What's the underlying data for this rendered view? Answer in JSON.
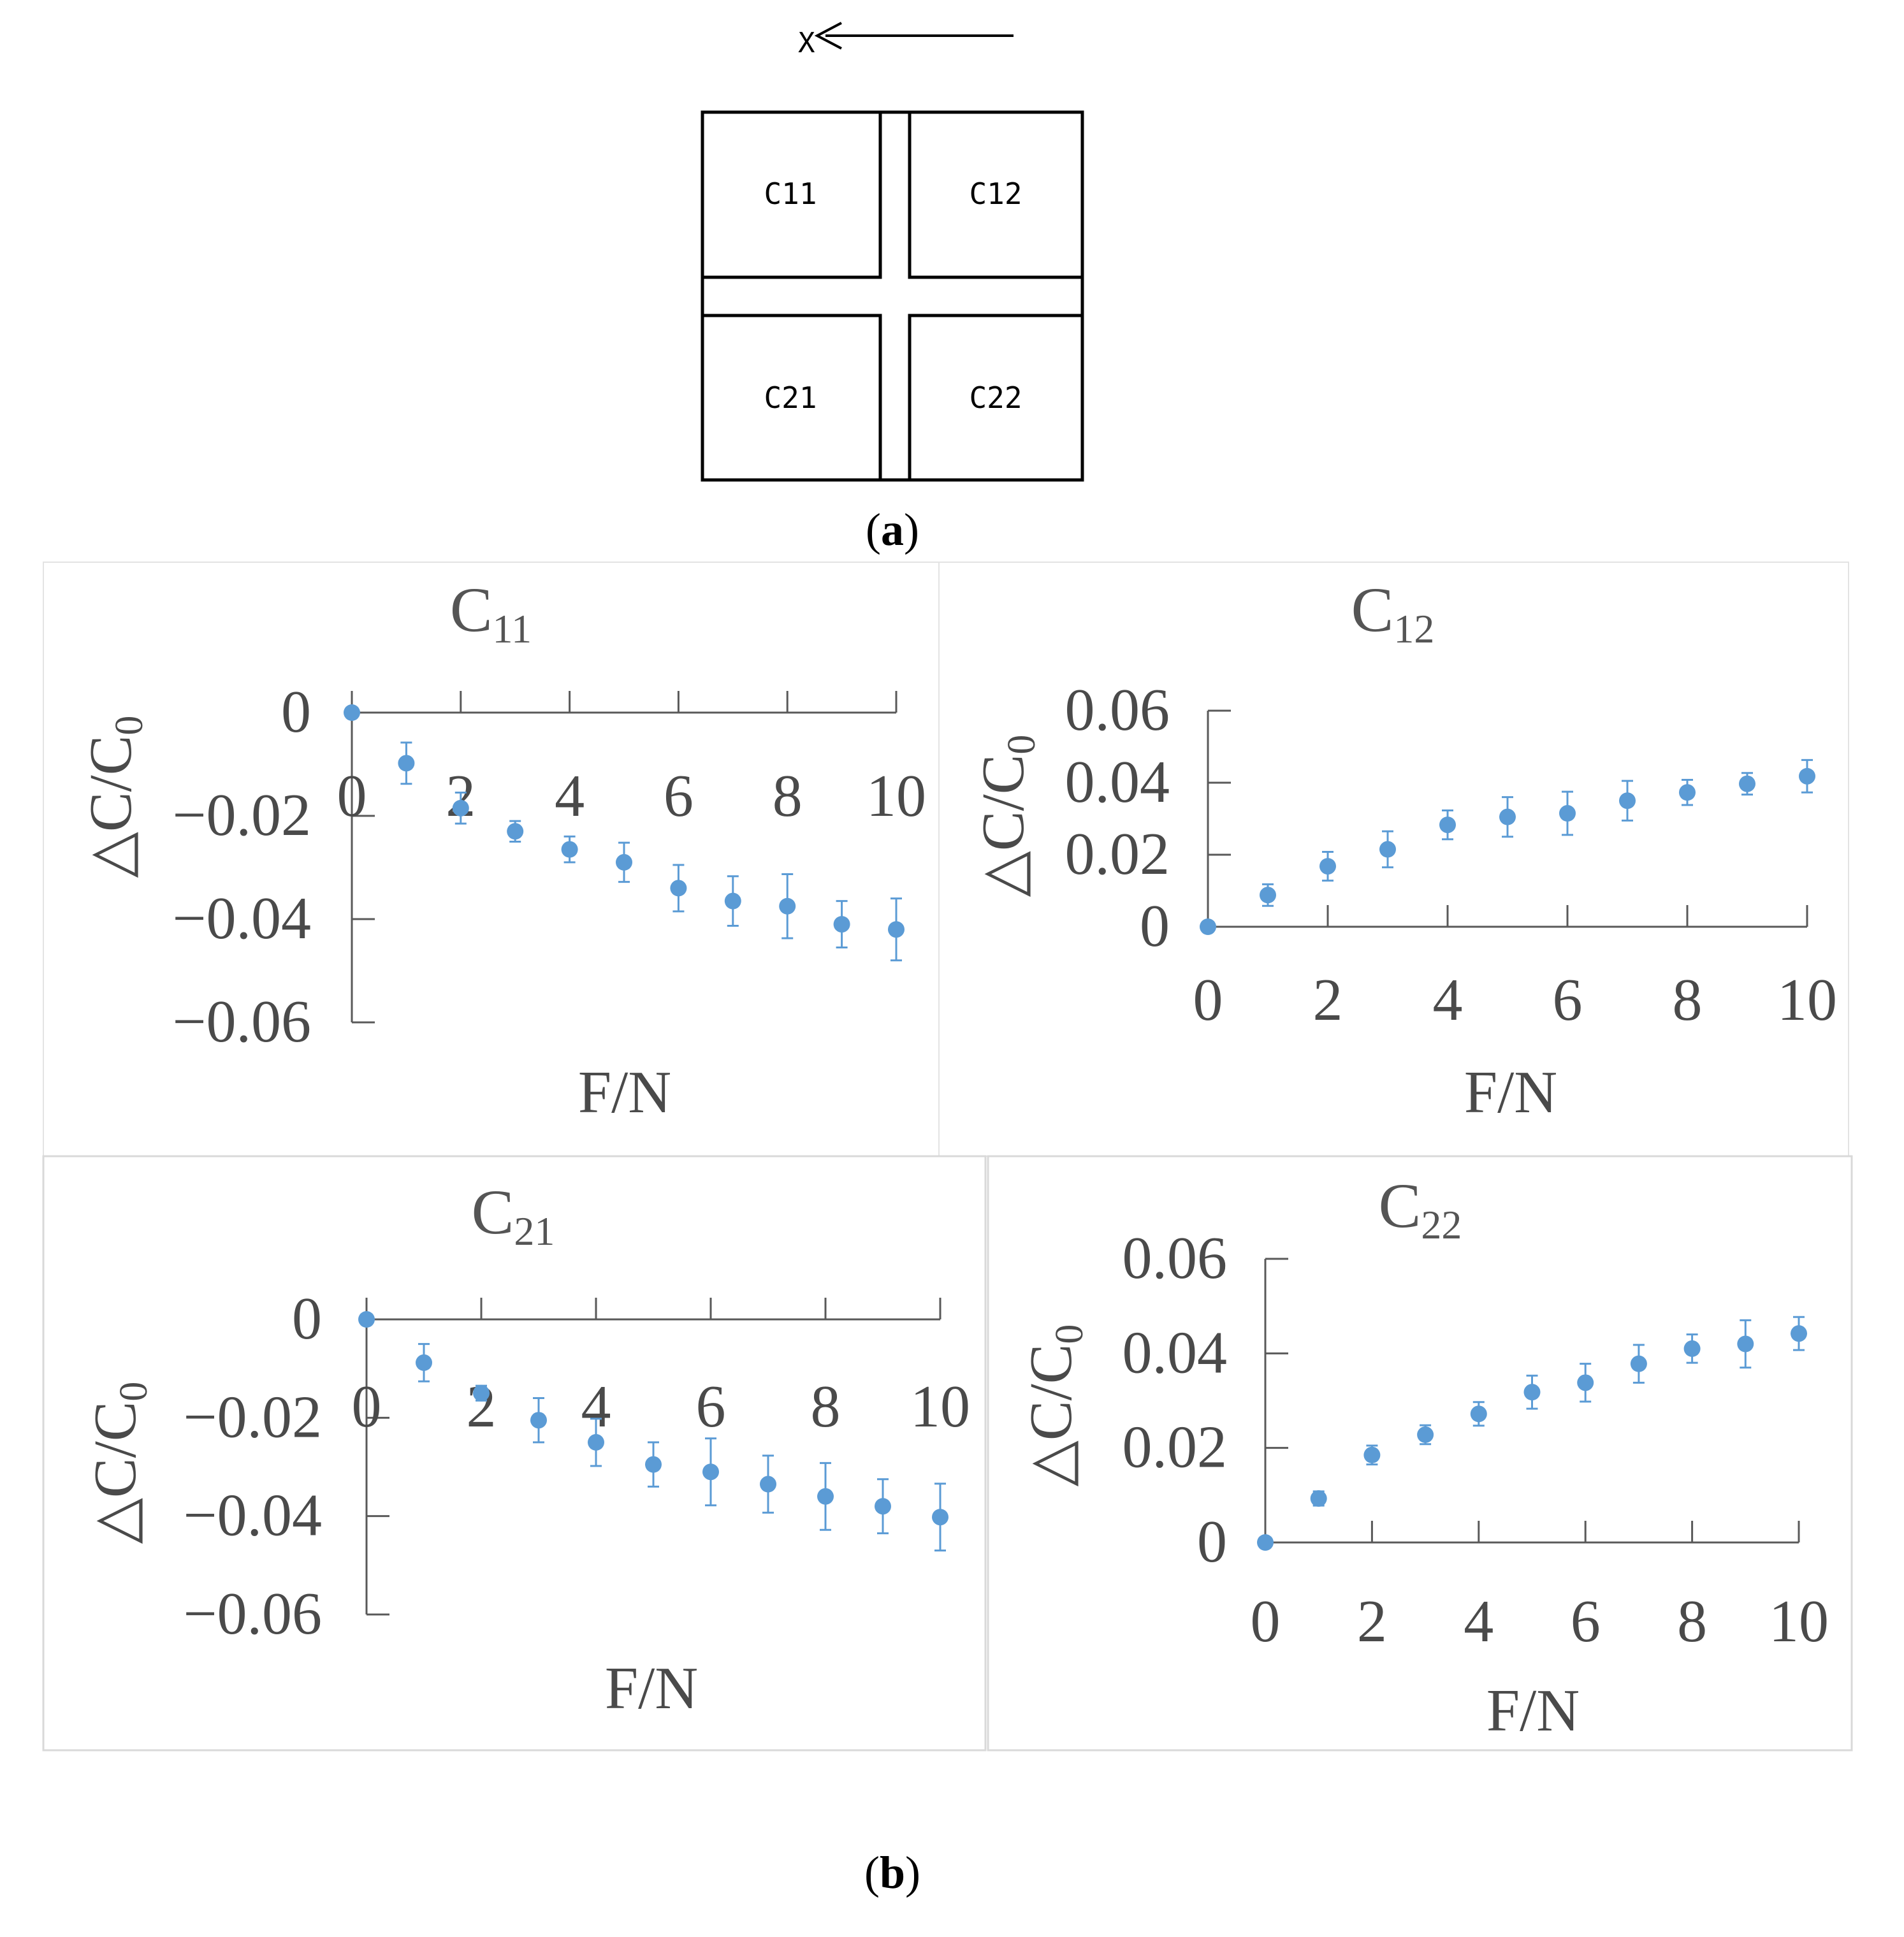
{
  "diagram": {
    "direction_label": "X",
    "cells": [
      "C11",
      "C12",
      "C21",
      "C22"
    ],
    "caption_open": "(",
    "caption_letter": "a",
    "caption_close": ")"
  },
  "figure_b_caption": {
    "open": "(",
    "letter": "b",
    "close": ")"
  },
  "colors": {
    "marker": "#5b9bd5",
    "axis": "#595959",
    "text": "#4a4a4a",
    "frame": "#d9d9d9"
  },
  "chart_data": [
    {
      "type": "scatter",
      "title": "C11",
      "title_main": "C",
      "title_sub": "11",
      "xlabel": "F/N",
      "ylabel_main": "△C/C",
      "ylabel_sub": "0",
      "xlim": [
        0,
        10
      ],
      "ylim": [
        -0.06,
        0
      ],
      "xticks": [
        "0",
        "2",
        "4",
        "6",
        "8",
        "10"
      ],
      "yticks": [
        "0",
        "−0.02",
        "−0.04",
        "−0.06"
      ],
      "error_bars": true,
      "series": [
        {
          "x": [
            0,
            1,
            2,
            3,
            4,
            5,
            6,
            7,
            8,
            9,
            10
          ],
          "y": [
            0,
            -0.0098,
            -0.0185,
            -0.023,
            -0.0265,
            -0.029,
            -0.034,
            -0.0365,
            -0.0375,
            -0.041,
            -0.042
          ],
          "err": [
            0,
            0.004,
            0.003,
            0.002,
            0.0025,
            0.0038,
            0.0045,
            0.0048,
            0.0062,
            0.0045,
            0.006
          ]
        }
      ]
    },
    {
      "type": "scatter",
      "title": "C12",
      "title_main": "C",
      "title_sub": "12",
      "xlabel": "F/N",
      "ylabel_main": "△C/C",
      "ylabel_sub": "0",
      "xlim": [
        0,
        10
      ],
      "ylim": [
        0,
        0.06
      ],
      "xticks": [
        "0",
        "2",
        "4",
        "6",
        "8",
        "10"
      ],
      "yticks": [
        "0",
        "0.02",
        "0.04",
        "0.06"
      ],
      "error_bars": true,
      "series": [
        {
          "x": [
            0,
            1,
            2,
            3,
            4,
            5,
            6,
            7,
            8,
            9,
            10
          ],
          "y": [
            0,
            0.0088,
            0.0168,
            0.0215,
            0.0283,
            0.0305,
            0.0315,
            0.035,
            0.0373,
            0.0397,
            0.0418
          ],
          "err": [
            0,
            0.003,
            0.004,
            0.005,
            0.004,
            0.0055,
            0.006,
            0.0055,
            0.0035,
            0.003,
            0.0045
          ]
        }
      ]
    },
    {
      "type": "scatter",
      "title": "C21",
      "title_main": "C",
      "title_sub": "21",
      "xlabel": "F/N",
      "ylabel_main": "△C/C",
      "ylabel_sub": "0",
      "xlim": [
        0,
        10
      ],
      "ylim": [
        -0.06,
        0
      ],
      "xticks": [
        "0",
        "2",
        "4",
        "6",
        "8",
        "10"
      ],
      "yticks": [
        "0",
        "−0.02",
        "−0.04",
        "−0.06"
      ],
      "error_bars": true,
      "series": [
        {
          "x": [
            0,
            1,
            2,
            3,
            4,
            5,
            6,
            7,
            8,
            9,
            10
          ],
          "y": [
            0,
            -0.0088,
            -0.015,
            -0.0205,
            -0.025,
            -0.0295,
            -0.031,
            -0.0335,
            -0.036,
            -0.038,
            -0.0402
          ],
          "err": [
            0,
            0.0038,
            0.0015,
            0.0045,
            0.0048,
            0.0045,
            0.0068,
            0.0058,
            0.0068,
            0.0055,
            0.0068
          ]
        }
      ]
    },
    {
      "type": "scatter",
      "title": "C22",
      "title_main": "C",
      "title_sub": "22",
      "xlabel": "F/N",
      "ylabel_main": "△C/C",
      "ylabel_sub": "0",
      "xlim": [
        0,
        10
      ],
      "ylim": [
        0,
        0.06
      ],
      "xticks": [
        "0",
        "2",
        "4",
        "6",
        "8",
        "10"
      ],
      "yticks": [
        "0",
        "0.02",
        "0.04",
        "0.06"
      ],
      "error_bars": true,
      "series": [
        {
          "x": [
            0,
            1,
            2,
            3,
            4,
            5,
            6,
            7,
            8,
            9,
            10
          ],
          "y": [
            0,
            0.0093,
            0.0185,
            0.0228,
            0.0272,
            0.0318,
            0.0338,
            0.0378,
            0.041,
            0.042,
            0.0442
          ],
          "err": [
            0,
            0.0015,
            0.002,
            0.002,
            0.0025,
            0.0035,
            0.004,
            0.004,
            0.003,
            0.005,
            0.0035
          ]
        }
      ]
    }
  ]
}
